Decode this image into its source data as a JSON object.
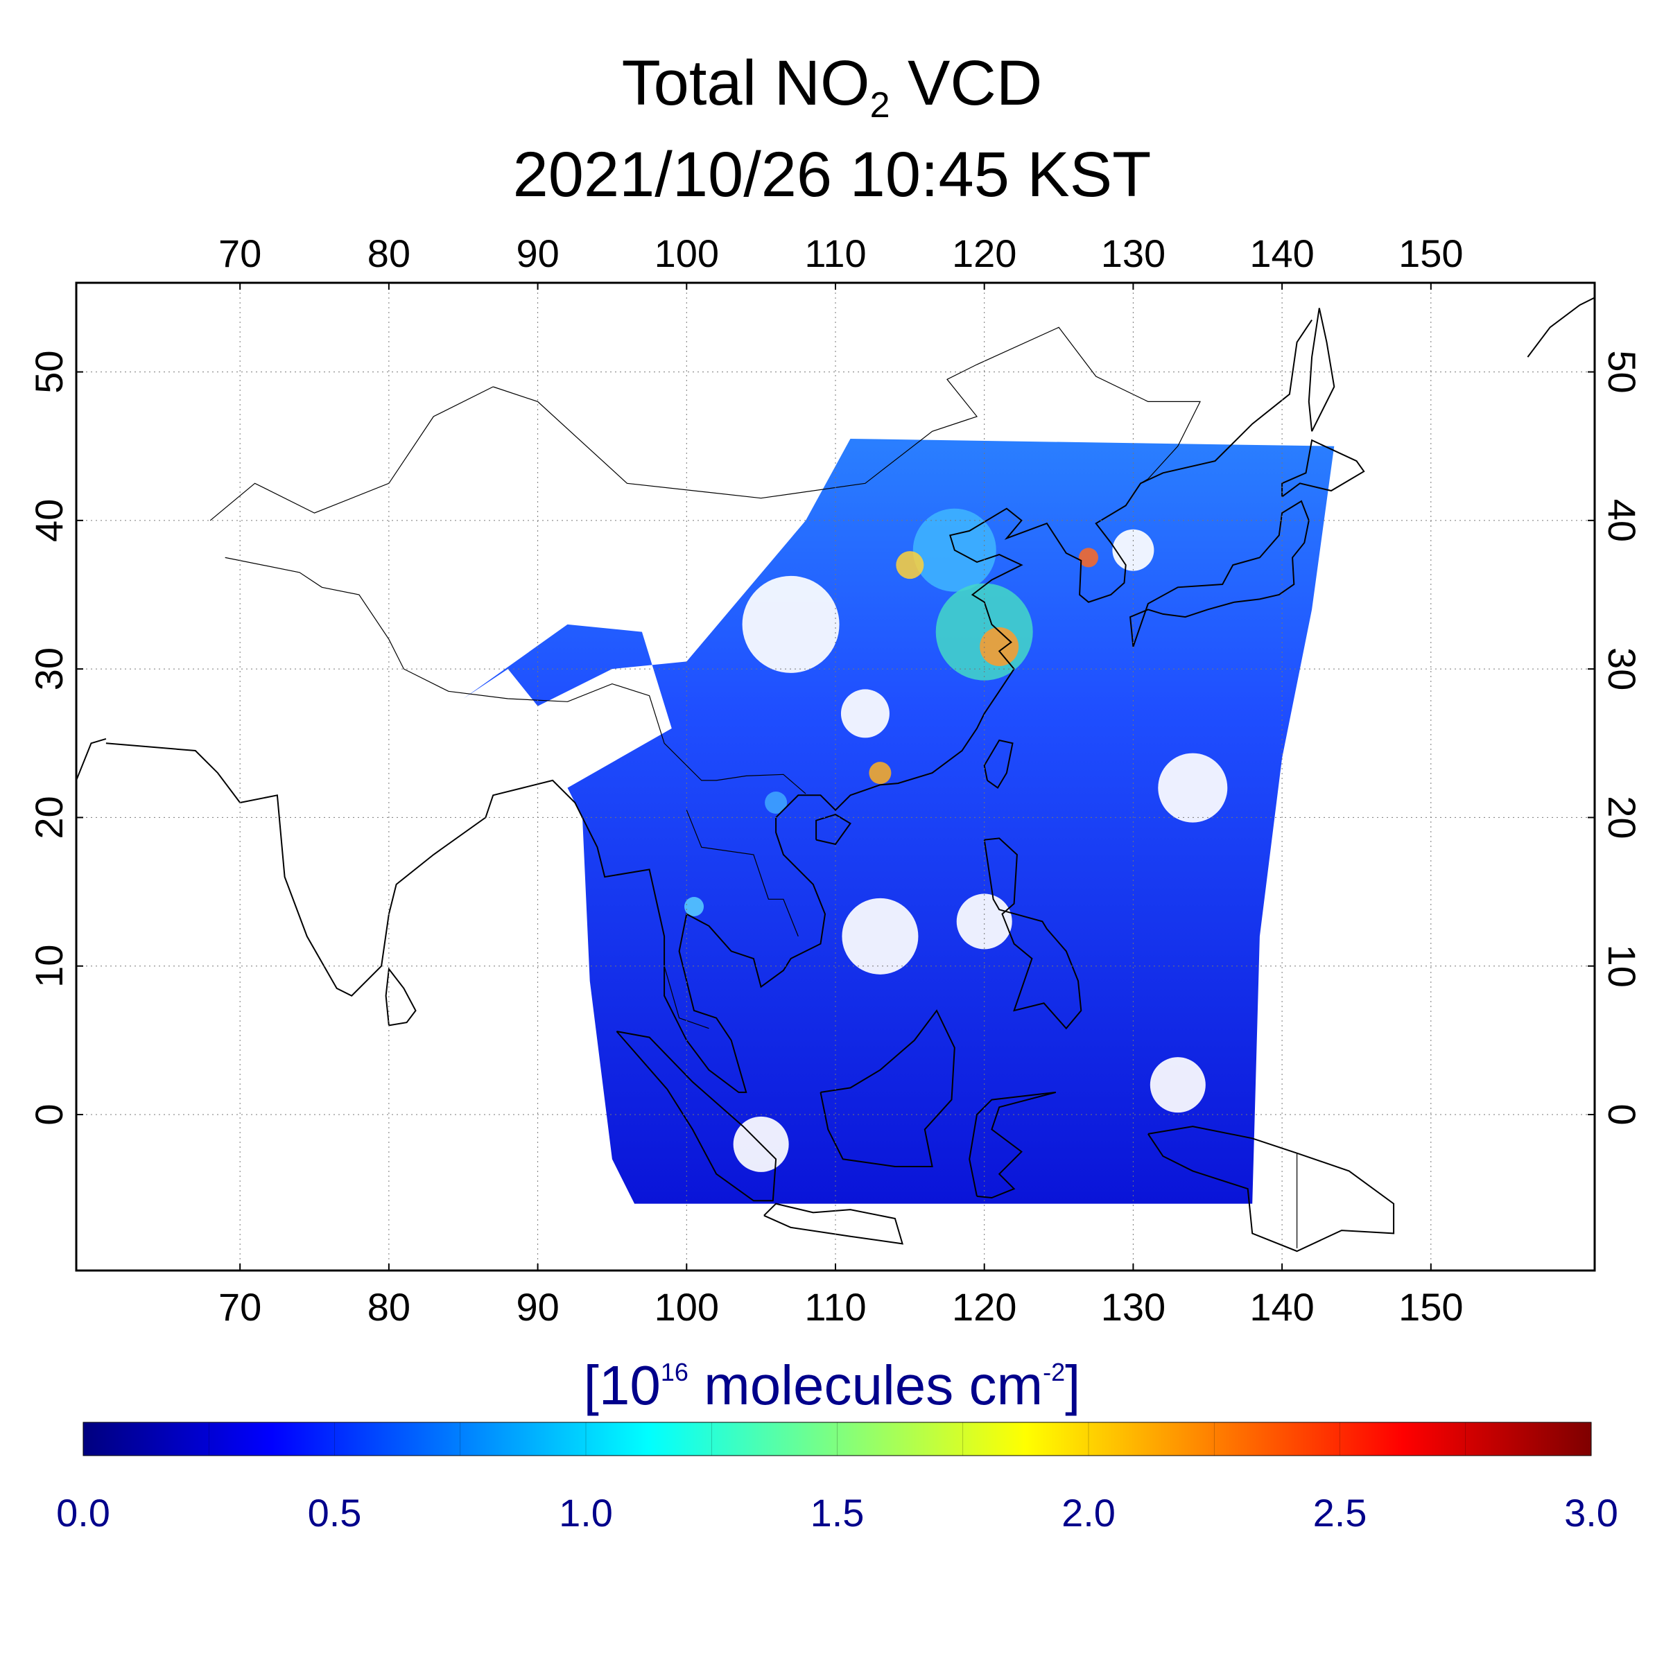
{
  "title": {
    "line1_prefix": "Total NO",
    "line1_sub": "2",
    "line1_suffix": " VCD",
    "line2": "2021/10/26 10:45 KST"
  },
  "map": {
    "lon_range": [
      59,
      161
    ],
    "lat_range": [
      -10.5,
      56
    ],
    "lon_ticks": [
      "70",
      "80",
      "90",
      "100",
      "110",
      "120",
      "130",
      "140",
      "150"
    ],
    "lat_ticks": [
      "0",
      "10",
      "20",
      "30",
      "40",
      "50"
    ],
    "grid": true,
    "swath": [
      [
        93,
        20
      ],
      [
        93.5,
        9
      ],
      [
        95,
        -3
      ],
      [
        96.5,
        -6
      ],
      [
        138,
        -6
      ],
      [
        138.5,
        12
      ],
      [
        140,
        24
      ],
      [
        142,
        34
      ],
      [
        143.5,
        45
      ],
      [
        111,
        45.5
      ],
      [
        108,
        40
      ],
      [
        100,
        30.5
      ],
      [
        95,
        30
      ],
      [
        90,
        27.5
      ],
      [
        88,
        30
      ],
      [
        85,
        28
      ],
      [
        92,
        33
      ],
      [
        97,
        32.5
      ],
      [
        99,
        26
      ],
      [
        92,
        22
      ]
    ]
  },
  "colorbar": {
    "unit_prefix": "[10",
    "unit_exp": "16",
    "unit_middle": " molecules cm",
    "unit_exp2": "-2",
    "unit_suffix": "]",
    "min": 0.0,
    "max": 3.0,
    "tick_labels": [
      "0.0",
      "0.5",
      "1.0",
      "1.5",
      "2.0",
      "2.5",
      "3.0"
    ],
    "colors": [
      "#00007f",
      "#0000ff",
      "#007fff",
      "#00ffff",
      "#7fff7f",
      "#ffff00",
      "#ff7f00",
      "#ff0000",
      "#7f0000"
    ]
  }
}
